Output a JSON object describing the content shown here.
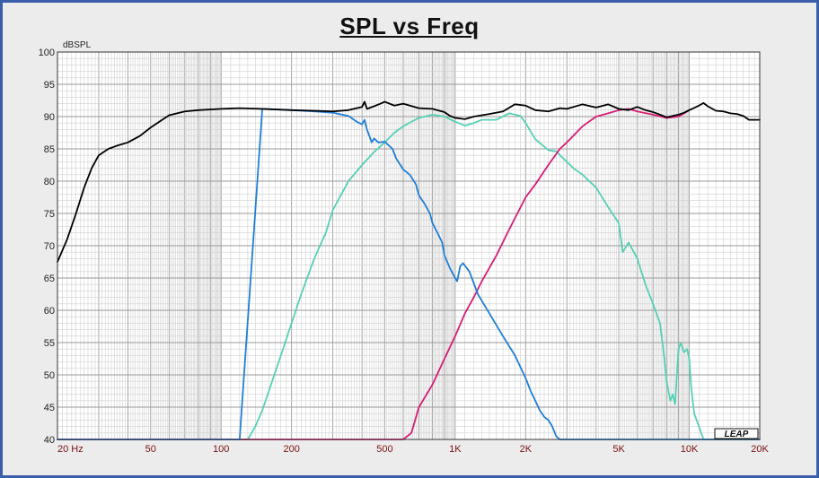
{
  "chart_data": {
    "type": "line",
    "title": "SPL vs Freq",
    "ylabel": "dBSPL",
    "xlabel": "",
    "x_scale": "log",
    "xlim": [
      20,
      20000
    ],
    "ylim": [
      40,
      100
    ],
    "grid": true,
    "y_ticks": [
      40,
      45,
      50,
      55,
      60,
      65,
      70,
      75,
      80,
      85,
      90,
      95,
      100
    ],
    "x_ticks": [
      {
        "value": 20,
        "label": "20  Hz"
      },
      {
        "value": 50,
        "label": "50"
      },
      {
        "value": 100,
        "label": "100"
      },
      {
        "value": 200,
        "label": "200"
      },
      {
        "value": 500,
        "label": "500"
      },
      {
        "value": 1000,
        "label": "1K"
      },
      {
        "value": 2000,
        "label": "2K"
      },
      {
        "value": 5000,
        "label": "5K"
      },
      {
        "value": 10000,
        "label": "10K"
      },
      {
        "value": 20000,
        "label": "20K"
      }
    ],
    "brand_text": "LEAP",
    "series": [
      {
        "color": "#000000",
        "points": [
          [
            20,
            67.5
          ],
          [
            22,
            71
          ],
          [
            24,
            75
          ],
          [
            26,
            79
          ],
          [
            28,
            82
          ],
          [
            30,
            84
          ],
          [
            33,
            85
          ],
          [
            36,
            85.5
          ],
          [
            40,
            86
          ],
          [
            45,
            87
          ],
          [
            50,
            88.3
          ],
          [
            55,
            89.3
          ],
          [
            60,
            90.2
          ],
          [
            70,
            90.8
          ],
          [
            80,
            91
          ],
          [
            100,
            91.2
          ],
          [
            120,
            91.3
          ],
          [
            150,
            91.2
          ],
          [
            200,
            91
          ],
          [
            250,
            90.9
          ],
          [
            300,
            90.8
          ],
          [
            350,
            91
          ],
          [
            400,
            91.5
          ],
          [
            410,
            92.3
          ],
          [
            420,
            91.2
          ],
          [
            450,
            91.6
          ],
          [
            480,
            92
          ],
          [
            500,
            92.3
          ],
          [
            550,
            91.7
          ],
          [
            600,
            92
          ],
          [
            700,
            91.3
          ],
          [
            800,
            91.2
          ],
          [
            900,
            90.7
          ],
          [
            950,
            90.1
          ],
          [
            1000,
            89.8
          ],
          [
            1100,
            89.6
          ],
          [
            1200,
            90
          ],
          [
            1400,
            90.4
          ],
          [
            1600,
            90.8
          ],
          [
            1800,
            91.9
          ],
          [
            2000,
            91.7
          ],
          [
            2200,
            91
          ],
          [
            2500,
            90.8
          ],
          [
            2800,
            91.3
          ],
          [
            3000,
            91.2
          ],
          [
            3500,
            91.9
          ],
          [
            4000,
            91.4
          ],
          [
            4500,
            91.9
          ],
          [
            5000,
            91.2
          ],
          [
            5500,
            91
          ],
          [
            6000,
            91.5
          ],
          [
            6500,
            91
          ],
          [
            7000,
            90.7
          ],
          [
            7500,
            90.3
          ],
          [
            8000,
            89.9
          ],
          [
            8500,
            90.1
          ],
          [
            9000,
            90.3
          ],
          [
            9500,
            90.6
          ],
          [
            10000,
            91
          ],
          [
            11000,
            91.7
          ],
          [
            11500,
            92.1
          ],
          [
            12000,
            91.6
          ],
          [
            13000,
            90.9
          ],
          [
            14000,
            90.8
          ],
          [
            15000,
            90.5
          ],
          [
            16000,
            90.4
          ],
          [
            17000,
            90.1
          ],
          [
            18000,
            89.5
          ],
          [
            19000,
            89.5
          ],
          [
            20000,
            89.5
          ]
        ]
      },
      {
        "color": "#1f7fd6",
        "points": [
          [
            20,
            40
          ],
          [
            100,
            40
          ],
          [
            120,
            40
          ],
          [
            150,
            91.2
          ],
          [
            200,
            91
          ],
          [
            250,
            90.8
          ],
          [
            300,
            90.6
          ],
          [
            350,
            90.1
          ],
          [
            380,
            89.2
          ],
          [
            400,
            88.8
          ],
          [
            410,
            89.5
          ],
          [
            420,
            88
          ],
          [
            440,
            86
          ],
          [
            450,
            86.6
          ],
          [
            470,
            86
          ],
          [
            500,
            86.1
          ],
          [
            540,
            85
          ],
          [
            560,
            83.5
          ],
          [
            600,
            81.8
          ],
          [
            640,
            81
          ],
          [
            680,
            79.5
          ],
          [
            700,
            77.8
          ],
          [
            740,
            76.5
          ],
          [
            780,
            75
          ],
          [
            800,
            73.5
          ],
          [
            840,
            72
          ],
          [
            880,
            70.5
          ],
          [
            900,
            68.5
          ],
          [
            950,
            66.5
          ],
          [
            1000,
            65
          ],
          [
            1020,
            64.5
          ],
          [
            1050,
            66.8
          ],
          [
            1080,
            67.3
          ],
          [
            1150,
            66
          ],
          [
            1250,
            62.5
          ],
          [
            1400,
            59.5
          ],
          [
            1600,
            56
          ],
          [
            1800,
            53
          ],
          [
            2000,
            49.5
          ],
          [
            2100,
            47.5
          ],
          [
            2200,
            46
          ],
          [
            2300,
            44.5
          ],
          [
            2400,
            43.5
          ],
          [
            2500,
            43
          ],
          [
            2600,
            42
          ],
          [
            2700,
            40.5
          ],
          [
            2800,
            40
          ],
          [
            20000,
            40
          ]
        ]
      },
      {
        "color": "#55d0b4",
        "points": [
          [
            20,
            40
          ],
          [
            130,
            40
          ],
          [
            140,
            42
          ],
          [
            150,
            44.5
          ],
          [
            160,
            47.5
          ],
          [
            180,
            53
          ],
          [
            200,
            58
          ],
          [
            220,
            62.5
          ],
          [
            250,
            68
          ],
          [
            280,
            72
          ],
          [
            300,
            75.5
          ],
          [
            350,
            80
          ],
          [
            400,
            82.5
          ],
          [
            450,
            84.5
          ],
          [
            500,
            86
          ],
          [
            550,
            87.5
          ],
          [
            600,
            88.5
          ],
          [
            650,
            89.2
          ],
          [
            700,
            89.8
          ],
          [
            800,
            90.3
          ],
          [
            900,
            90
          ],
          [
            1000,
            89.2
          ],
          [
            1100,
            88.6
          ],
          [
            1200,
            89
          ],
          [
            1300,
            89.5
          ],
          [
            1500,
            89.5
          ],
          [
            1700,
            90.5
          ],
          [
            1900,
            90.1
          ],
          [
            2000,
            89
          ],
          [
            2200,
            86.5
          ],
          [
            2500,
            84.8
          ],
          [
            2700,
            84.6
          ],
          [
            2900,
            83.5
          ],
          [
            3200,
            82
          ],
          [
            3500,
            81
          ],
          [
            4000,
            79
          ],
          [
            4500,
            76
          ],
          [
            5000,
            73.5
          ],
          [
            5200,
            69
          ],
          [
            5500,
            70.5
          ],
          [
            5800,
            69
          ],
          [
            6000,
            68
          ],
          [
            6500,
            64
          ],
          [
            7000,
            61
          ],
          [
            7500,
            58
          ],
          [
            7800,
            53
          ],
          [
            8000,
            49
          ],
          [
            8300,
            46
          ],
          [
            8500,
            47
          ],
          [
            8700,
            45.5
          ],
          [
            9000,
            54
          ],
          [
            9200,
            55
          ],
          [
            9500,
            53.5
          ],
          [
            9800,
            54
          ],
          [
            10000,
            52.5
          ],
          [
            10200,
            48
          ],
          [
            10500,
            44
          ],
          [
            11000,
            42
          ],
          [
            11500,
            40
          ],
          [
            20000,
            40
          ]
        ]
      },
      {
        "color": "#d81b74",
        "points": [
          [
            20,
            40
          ],
          [
            600,
            40
          ],
          [
            650,
            41
          ],
          [
            700,
            45
          ],
          [
            800,
            48.5
          ],
          [
            900,
            52.5
          ],
          [
            1000,
            56
          ],
          [
            1100,
            59.5
          ],
          [
            1200,
            62
          ],
          [
            1300,
            64.5
          ],
          [
            1500,
            68.5
          ],
          [
            1700,
            72.5
          ],
          [
            2000,
            77.5
          ],
          [
            2200,
            79.5
          ],
          [
            2500,
            82.5
          ],
          [
            2800,
            85
          ],
          [
            3000,
            86
          ],
          [
            3500,
            88.5
          ],
          [
            4000,
            90
          ],
          [
            4500,
            90.5
          ],
          [
            5000,
            91
          ],
          [
            5500,
            91.2
          ],
          [
            6000,
            90.8
          ],
          [
            7000,
            90.3
          ],
          [
            8000,
            89.8
          ],
          [
            9000,
            90
          ],
          [
            10000,
            91
          ]
        ]
      }
    ]
  }
}
